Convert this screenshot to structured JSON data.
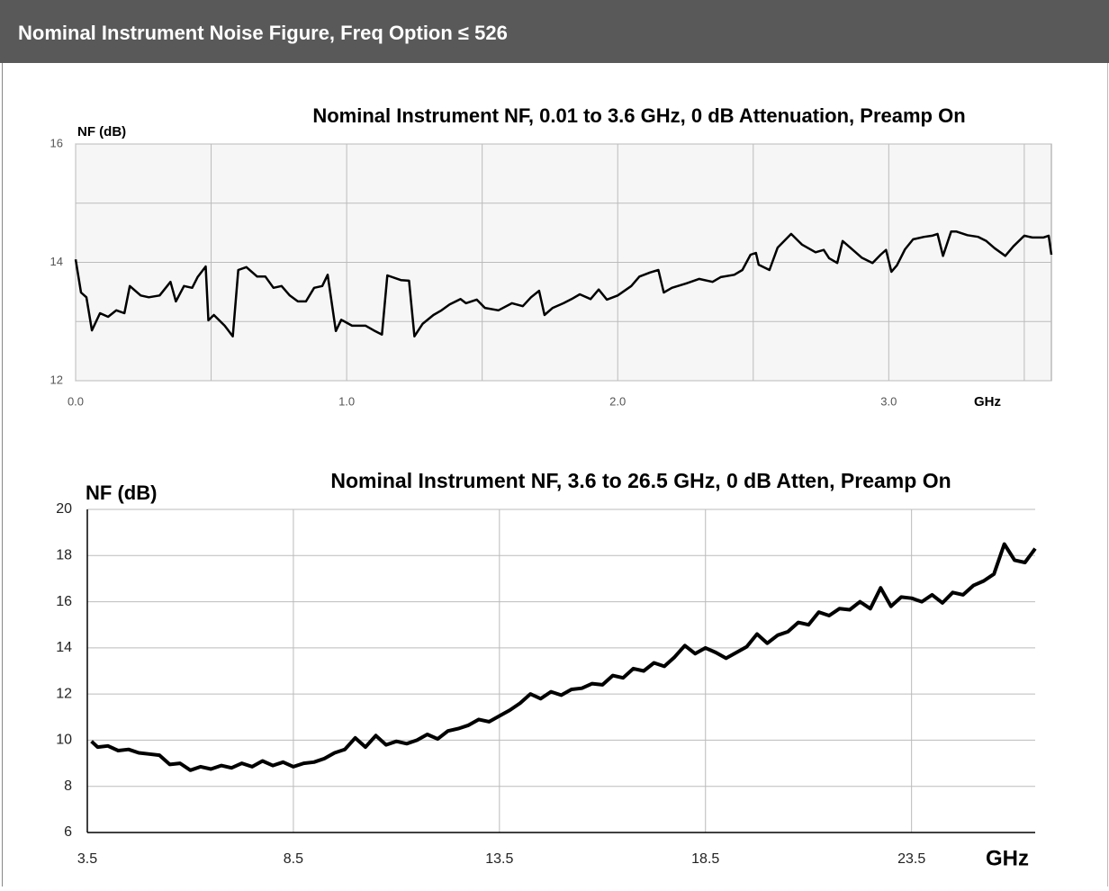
{
  "header": {
    "title": "Nominal Instrument Noise Figure, Freq Option ≤ 526"
  },
  "chart_data": [
    {
      "type": "line",
      "title": "Nominal Instrument NF, 0.01 to 3.6 GHz, 0 dB Attenuation, Preamp On",
      "ylabel": "NF (dB)",
      "xlabel": "GHz",
      "xlim": [
        0,
        3.6
      ],
      "ylim": [
        12,
        16
      ],
      "xticks": [
        {
          "value": 0,
          "label": "0.0"
        },
        {
          "value": 1,
          "label": "1.0"
        },
        {
          "value": 2,
          "label": "2.0"
        },
        {
          "value": 3,
          "label": "3.0"
        }
      ],
      "xminor": [
        0.5,
        1.5,
        2.5,
        3.5
      ],
      "yticks": [
        12,
        14,
        16
      ],
      "yminor": [
        13,
        15
      ],
      "grid": true,
      "color": "#000000",
      "x": [
        0.0,
        0.02,
        0.04,
        0.06,
        0.09,
        0.12,
        0.15,
        0.18,
        0.2,
        0.24,
        0.27,
        0.31,
        0.35,
        0.37,
        0.4,
        0.43,
        0.45,
        0.48,
        0.49,
        0.51,
        0.55,
        0.58,
        0.6,
        0.63,
        0.67,
        0.7,
        0.73,
        0.76,
        0.79,
        0.82,
        0.85,
        0.88,
        0.91,
        0.93,
        0.96,
        0.98,
        1.02,
        1.07,
        1.1,
        1.13,
        1.15,
        1.2,
        1.23,
        1.25,
        1.28,
        1.32,
        1.35,
        1.38,
        1.42,
        1.44,
        1.48,
        1.51,
        1.56,
        1.61,
        1.65,
        1.68,
        1.71,
        1.73,
        1.76,
        1.8,
        1.83,
        1.86,
        1.9,
        1.93,
        1.96,
        2.0,
        2.05,
        2.08,
        2.12,
        2.15,
        2.17,
        2.2,
        2.25,
        2.3,
        2.35,
        2.38,
        2.43,
        2.46,
        2.49,
        2.51,
        2.52,
        2.56,
        2.59,
        2.64,
        2.68,
        2.73,
        2.76,
        2.78,
        2.81,
        2.83,
        2.86,
        2.9,
        2.94,
        2.97,
        2.99,
        3.01,
        3.03,
        3.06,
        3.09,
        3.13,
        3.16,
        3.18,
        3.2,
        3.23,
        3.25,
        3.29,
        3.33,
        3.36,
        3.39,
        3.43,
        3.46,
        3.5,
        3.53,
        3.57,
        3.59,
        3.6
      ],
      "values": [
        14.05,
        13.49,
        13.41,
        12.85,
        13.14,
        13.08,
        13.19,
        13.14,
        13.6,
        13.44,
        13.41,
        13.44,
        13.67,
        13.34,
        13.6,
        13.57,
        13.75,
        13.93,
        13.02,
        13.11,
        12.93,
        12.75,
        13.87,
        13.92,
        13.76,
        13.76,
        13.57,
        13.6,
        13.44,
        13.34,
        13.34,
        13.57,
        13.6,
        13.79,
        12.84,
        13.03,
        12.93,
        12.93,
        12.85,
        12.78,
        13.78,
        13.7,
        13.69,
        12.75,
        12.96,
        13.11,
        13.19,
        13.29,
        13.38,
        13.31,
        13.37,
        13.23,
        13.19,
        13.31,
        13.26,
        13.41,
        13.52,
        13.11,
        13.23,
        13.31,
        13.38,
        13.46,
        13.38,
        13.54,
        13.37,
        13.44,
        13.6,
        13.76,
        13.83,
        13.87,
        13.49,
        13.57,
        13.64,
        13.72,
        13.67,
        13.75,
        13.79,
        13.87,
        14.13,
        14.16,
        13.96,
        13.87,
        14.25,
        14.48,
        14.3,
        14.17,
        14.21,
        14.07,
        13.99,
        14.36,
        14.24,
        14.08,
        13.99,
        14.13,
        14.21,
        13.84,
        13.95,
        14.22,
        14.39,
        14.43,
        14.45,
        14.48,
        14.11,
        14.52,
        14.52,
        14.46,
        14.43,
        14.36,
        14.24,
        14.11,
        14.27,
        14.45,
        14.42,
        14.42,
        14.45,
        14.13
      ]
    },
    {
      "type": "line",
      "title": "Nominal Instrument NF, 3.6 to 26.5 GHz, 0 dB Atten, Preamp On",
      "ylabel": "NF (dB)",
      "xlabel": "GHz",
      "xlim": [
        3.5,
        26.5
      ],
      "ylim": [
        6,
        20
      ],
      "xticks": [
        3.5,
        8.5,
        13.5,
        18.5,
        23.5
      ],
      "yticks": [
        6,
        8,
        10,
        12,
        14,
        16,
        18,
        20
      ],
      "grid": true,
      "color": "#000000",
      "x": [
        3.6,
        3.75,
        4,
        4.25,
        4.5,
        4.75,
        5,
        5.25,
        5.5,
        5.75,
        6,
        6.25,
        6.5,
        6.75,
        7,
        7.25,
        7.5,
        7.75,
        8,
        8.25,
        8.5,
        8.75,
        9,
        9.25,
        9.5,
        9.75,
        10,
        10.25,
        10.5,
        10.75,
        11,
        11.25,
        11.5,
        11.75,
        12,
        12.25,
        12.5,
        12.75,
        13,
        13.25,
        13.5,
        13.75,
        14,
        14.25,
        14.5,
        14.75,
        15,
        15.25,
        15.5,
        15.75,
        16,
        16.25,
        16.5,
        16.75,
        17,
        17.25,
        17.5,
        17.75,
        18,
        18.25,
        18.5,
        18.75,
        19,
        19.25,
        19.5,
        19.75,
        20,
        20.25,
        20.5,
        20.75,
        21,
        21.25,
        21.5,
        21.75,
        22,
        22.25,
        22.5,
        22.75,
        23,
        23.25,
        23.5,
        23.75,
        24,
        24.25,
        24.5,
        24.75,
        25,
        25.25,
        25.5,
        25.75,
        26,
        26.25,
        26.5
      ],
      "values": [
        9.95,
        9.7,
        9.75,
        9.55,
        9.6,
        9.45,
        9.4,
        9.35,
        8.95,
        9.0,
        8.7,
        8.85,
        8.75,
        8.9,
        8.8,
        9.0,
        8.85,
        9.1,
        8.9,
        9.05,
        8.85,
        9.0,
        9.05,
        9.2,
        9.45,
        9.6,
        10.1,
        9.7,
        10.2,
        9.8,
        9.95,
        9.85,
        10.0,
        10.25,
        10.05,
        10.4,
        10.5,
        10.65,
        10.9,
        10.8,
        11.05,
        11.3,
        11.6,
        12.0,
        11.8,
        12.1,
        11.95,
        12.2,
        12.25,
        12.45,
        12.4,
        12.8,
        12.7,
        13.1,
        13.0,
        13.35,
        13.2,
        13.6,
        14.1,
        13.75,
        14.0,
        13.8,
        13.55,
        13.8,
        14.05,
        14.6,
        14.2,
        14.55,
        14.7,
        15.1,
        15.0,
        15.55,
        15.4,
        15.7,
        15.65,
        16.0,
        15.7,
        16.6,
        15.8,
        16.2,
        16.15,
        16.0,
        16.3,
        15.95,
        16.4,
        16.3,
        16.7,
        16.9,
        17.2,
        18.5,
        17.8,
        17.7,
        18.3
      ]
    }
  ]
}
